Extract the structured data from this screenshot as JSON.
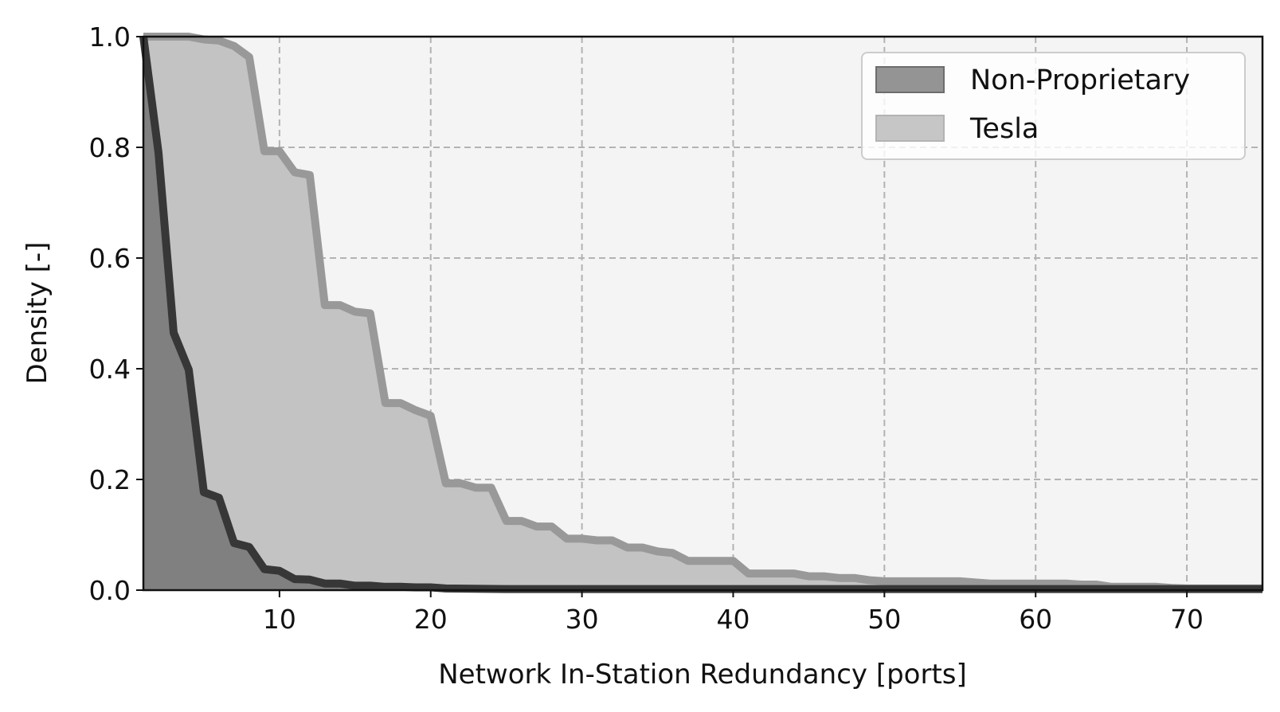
{
  "chart_data": {
    "type": "area",
    "xlabel": "Network In-Station Redundancy [ports]",
    "ylabel": "Density [-]",
    "xlim": [
      1,
      75
    ],
    "ylim": [
      0.0,
      1.0
    ],
    "x_ticks": [
      10,
      20,
      30,
      40,
      50,
      60,
      70
    ],
    "x_tick_labels": [
      "10",
      "20",
      "30",
      "40",
      "50",
      "60",
      "70"
    ],
    "y_ticks": [
      0.0,
      0.2,
      0.4,
      0.6,
      0.8,
      1.0
    ],
    "y_tick_labels": [
      "0.0",
      "0.2",
      "0.4",
      "0.6",
      "0.8",
      "1.0"
    ],
    "grid": true,
    "legend_position": "top-right",
    "plot_background": "#f4f4f4",
    "series": [
      {
        "name": "Tesla",
        "fill_color": "#c3c3c3",
        "line_color": "#999999",
        "points": [
          [
            1,
            1.0
          ],
          [
            2,
            1.0
          ],
          [
            3,
            1.0
          ],
          [
            4,
            1.0
          ],
          [
            5,
            0.995
          ],
          [
            6,
            0.993
          ],
          [
            7,
            0.983
          ],
          [
            8,
            0.963
          ],
          [
            9,
            0.793
          ],
          [
            10,
            0.793
          ],
          [
            11,
            0.755
          ],
          [
            12,
            0.75
          ],
          [
            13,
            0.515
          ],
          [
            14,
            0.515
          ],
          [
            15,
            0.503
          ],
          [
            16,
            0.5
          ],
          [
            17,
            0.338
          ],
          [
            18,
            0.338
          ],
          [
            19,
            0.325
          ],
          [
            20,
            0.315
          ],
          [
            21,
            0.193
          ],
          [
            22,
            0.193
          ],
          [
            23,
            0.185
          ],
          [
            24,
            0.185
          ],
          [
            25,
            0.125
          ],
          [
            26,
            0.125
          ],
          [
            27,
            0.115
          ],
          [
            28,
            0.115
          ],
          [
            29,
            0.093
          ],
          [
            30,
            0.093
          ],
          [
            31,
            0.09
          ],
          [
            32,
            0.09
          ],
          [
            33,
            0.077
          ],
          [
            34,
            0.077
          ],
          [
            35,
            0.07
          ],
          [
            36,
            0.067
          ],
          [
            37,
            0.053
          ],
          [
            38,
            0.053
          ],
          [
            39,
            0.053
          ],
          [
            40,
            0.053
          ],
          [
            41,
            0.03
          ],
          [
            42,
            0.03
          ],
          [
            43,
            0.03
          ],
          [
            44,
            0.03
          ],
          [
            45,
            0.025
          ],
          [
            46,
            0.025
          ],
          [
            47,
            0.022
          ],
          [
            48,
            0.022
          ],
          [
            49,
            0.018
          ],
          [
            50,
            0.016
          ],
          [
            51,
            0.016
          ],
          [
            52,
            0.016
          ],
          [
            53,
            0.016
          ],
          [
            54,
            0.016
          ],
          [
            55,
            0.016
          ],
          [
            56,
            0.014
          ],
          [
            57,
            0.012
          ],
          [
            58,
            0.012
          ],
          [
            59,
            0.012
          ],
          [
            60,
            0.012
          ],
          [
            61,
            0.012
          ],
          [
            62,
            0.012
          ],
          [
            63,
            0.01
          ],
          [
            64,
            0.01
          ],
          [
            65,
            0.006
          ],
          [
            66,
            0.006
          ],
          [
            67,
            0.006
          ],
          [
            68,
            0.006
          ],
          [
            69,
            0.004
          ],
          [
            70,
            0.003
          ],
          [
            71,
            0.003
          ],
          [
            72,
            0.003
          ],
          [
            73,
            0.003
          ],
          [
            74,
            0.003
          ],
          [
            75,
            0.003
          ]
        ]
      },
      {
        "name": "Non-Proprietary",
        "fill_color": "#808080",
        "line_color": "#373737",
        "points": [
          [
            1,
            1.0
          ],
          [
            2,
            0.79
          ],
          [
            3,
            0.465
          ],
          [
            4,
            0.398
          ],
          [
            5,
            0.177
          ],
          [
            6,
            0.167
          ],
          [
            7,
            0.085
          ],
          [
            8,
            0.078
          ],
          [
            9,
            0.038
          ],
          [
            10,
            0.035
          ],
          [
            11,
            0.02
          ],
          [
            12,
            0.019
          ],
          [
            13,
            0.012
          ],
          [
            14,
            0.012
          ],
          [
            15,
            0.008
          ],
          [
            16,
            0.008
          ],
          [
            17,
            0.006
          ],
          [
            18,
            0.006
          ],
          [
            19,
            0.005
          ],
          [
            20,
            0.005
          ],
          [
            21,
            0.003
          ],
          [
            25,
            0.002
          ],
          [
            30,
            0.002
          ],
          [
            40,
            0.002
          ],
          [
            50,
            0.002
          ],
          [
            60,
            0.002
          ],
          [
            70,
            0.002
          ],
          [
            75,
            0.002
          ]
        ]
      }
    ],
    "legend": [
      {
        "label": "Non-Proprietary",
        "fill_color": "#949494",
        "edge_color": "#6d6d6d"
      },
      {
        "label": "Tesla",
        "fill_color": "#c6c6c6",
        "edge_color": "#b3b3b3"
      }
    ]
  }
}
